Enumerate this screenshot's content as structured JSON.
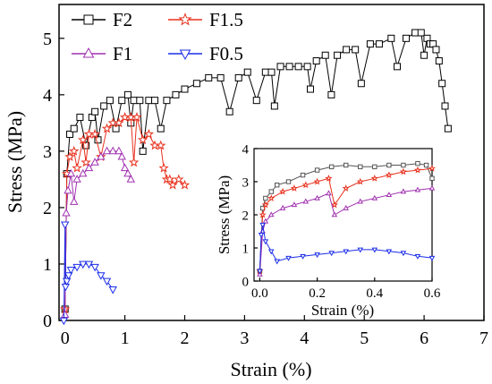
{
  "chart_data": [
    {
      "type": "scatter",
      "xlabel": "Strain (%)",
      "ylabel": "Stress (MPa)",
      "xlim": [
        -0.1,
        7
      ],
      "ylim": [
        0,
        5.6
      ],
      "xticks": [
        "0",
        "1",
        "2",
        "3",
        "4",
        "5",
        "6",
        "7"
      ],
      "yticks": [
        "0",
        "1",
        "2",
        "3",
        "4",
        "5"
      ],
      "grid": false,
      "legend": "top-left, two columns",
      "series": [
        {
          "name": "F2",
          "color": "#000000",
          "marker": "square",
          "x": [
            0.0,
            0.03,
            0.08,
            0.15,
            0.25,
            0.35,
            0.45,
            0.5,
            0.55,
            0.65,
            0.75,
            0.85,
            0.95,
            1.05,
            1.1,
            1.15,
            1.25,
            1.3,
            1.4,
            1.5,
            1.6,
            1.7,
            1.85,
            2.0,
            2.2,
            2.4,
            2.6,
            2.75,
            2.9,
            3.05,
            3.2,
            3.35,
            3.45,
            3.5,
            3.6,
            3.75,
            3.9,
            4.05,
            4.1,
            4.2,
            4.35,
            4.45,
            4.55,
            4.7,
            4.85,
            4.95,
            5.1,
            5.25,
            5.45,
            5.55,
            5.7,
            5.85,
            5.95,
            6.0,
            6.05,
            6.1,
            6.15,
            6.2,
            6.25,
            6.3,
            6.35,
            6.4
          ],
          "y": [
            0.2,
            2.6,
            3.3,
            3.4,
            3.6,
            3.1,
            3.6,
            3.7,
            3.2,
            3.8,
            3.9,
            3.4,
            3.9,
            4.0,
            3.5,
            3.9,
            3.9,
            3.0,
            3.9,
            3.9,
            3.4,
            3.9,
            4.0,
            4.1,
            4.2,
            4.3,
            4.3,
            3.7,
            4.3,
            4.4,
            3.9,
            4.4,
            4.4,
            3.8,
            4.5,
            4.5,
            4.5,
            4.5,
            4.1,
            4.6,
            4.7,
            4.0,
            4.7,
            4.8,
            4.8,
            4.2,
            4.9,
            4.9,
            5.0,
            4.5,
            5.0,
            5.1,
            5.1,
            4.7,
            5.0,
            4.9,
            4.9,
            4.8,
            4.6,
            4.2,
            3.8,
            3.4
          ]
        },
        {
          "name": "F1.5",
          "color": "#e8301c",
          "marker": "star",
          "x": [
            0.0,
            0.03,
            0.08,
            0.15,
            0.2,
            0.3,
            0.35,
            0.4,
            0.5,
            0.6,
            0.7,
            0.8,
            0.9,
            1.0,
            1.1,
            1.15,
            1.2,
            1.3,
            1.4,
            1.5,
            1.6,
            1.65,
            1.7,
            1.75,
            1.8,
            1.9,
            2.0
          ],
          "y": [
            0.2,
            2.6,
            2.9,
            3.0,
            2.7,
            3.2,
            2.8,
            3.3,
            3.3,
            2.9,
            3.4,
            3.5,
            3.5,
            3.6,
            3.6,
            2.8,
            3.6,
            3.2,
            3.3,
            3.1,
            3.1,
            2.7,
            2.5,
            2.5,
            2.4,
            2.5,
            2.4
          ]
        },
        {
          "name": "F1",
          "color": "#a030b0",
          "marker": "triangle-up",
          "x": [
            0.0,
            0.02,
            0.05,
            0.1,
            0.15,
            0.2,
            0.3,
            0.4,
            0.5,
            0.6,
            0.7,
            0.8,
            0.9,
            0.95,
            1.0,
            1.05,
            1.1
          ],
          "y": [
            0.1,
            1.9,
            2.3,
            2.6,
            2.1,
            2.5,
            2.6,
            2.7,
            2.8,
            2.9,
            3.0,
            3.0,
            3.0,
            2.9,
            2.7,
            2.6,
            2.5
          ]
        },
        {
          "name": "F0.5",
          "color": "#1c2ee8",
          "marker": "triangle-down",
          "x": [
            -0.02,
            0.0,
            0.01,
            0.03,
            0.06,
            0.1,
            0.2,
            0.3,
            0.4,
            0.5,
            0.6,
            0.7,
            0.8
          ],
          "y": [
            0.0,
            1.7,
            0.6,
            0.7,
            0.8,
            0.9,
            0.95,
            1.0,
            1.0,
            0.95,
            0.8,
            0.7,
            0.55
          ]
        }
      ]
    },
    {
      "type": "scatter",
      "xlabel": "Strain (%)",
      "ylabel": "Stress (MPa)",
      "xlim": [
        -0.02,
        0.6
      ],
      "ylim": [
        0,
        4
      ],
      "xticks": [
        "0.0",
        "0.2",
        "0.4",
        "0.6"
      ],
      "yticks": [
        "0",
        "1",
        "2",
        "3",
        "4"
      ],
      "grid": false,
      "series": [
        {
          "name": "F2",
          "color": "#555555",
          "marker": "square",
          "x": [
            0.0,
            0.01,
            0.02,
            0.04,
            0.06,
            0.1,
            0.15,
            0.2,
            0.25,
            0.3,
            0.35,
            0.4,
            0.45,
            0.5,
            0.55,
            0.58,
            0.6
          ],
          "y": [
            0.3,
            2.2,
            2.5,
            2.7,
            2.9,
            3.0,
            3.2,
            3.35,
            3.45,
            3.5,
            3.45,
            3.45,
            3.5,
            3.5,
            3.55,
            3.5,
            3.1
          ]
        },
        {
          "name": "F1.5",
          "color": "#e8301c",
          "marker": "star",
          "x": [
            0.0,
            0.01,
            0.02,
            0.04,
            0.08,
            0.12,
            0.16,
            0.2,
            0.24,
            0.26,
            0.3,
            0.35,
            0.4,
            0.45,
            0.5,
            0.55,
            0.6
          ],
          "y": [
            0.3,
            2.0,
            2.3,
            2.5,
            2.7,
            2.8,
            2.9,
            3.0,
            3.1,
            2.3,
            2.8,
            3.0,
            3.1,
            3.2,
            3.3,
            3.35,
            3.4
          ]
        },
        {
          "name": "F1",
          "color": "#a030b0",
          "marker": "triangle-up",
          "x": [
            0.0,
            0.01,
            0.02,
            0.04,
            0.08,
            0.12,
            0.16,
            0.2,
            0.24,
            0.26,
            0.3,
            0.35,
            0.4,
            0.45,
            0.5,
            0.55,
            0.6
          ],
          "y": [
            0.2,
            1.5,
            1.8,
            2.0,
            2.2,
            2.3,
            2.4,
            2.5,
            2.65,
            2.0,
            2.2,
            2.4,
            2.5,
            2.6,
            2.7,
            2.75,
            2.8
          ]
        },
        {
          "name": "F0.5",
          "color": "#1c2ee8",
          "marker": "triangle-down",
          "x": [
            0.0,
            0.005,
            0.01,
            0.02,
            0.04,
            0.06,
            0.1,
            0.15,
            0.2,
            0.25,
            0.3,
            0.35,
            0.4,
            0.45,
            0.5,
            0.55,
            0.6
          ],
          "y": [
            0.3,
            1.4,
            1.7,
            1.2,
            0.9,
            0.6,
            0.7,
            0.75,
            0.8,
            0.85,
            0.9,
            0.95,
            0.95,
            0.9,
            0.85,
            0.75,
            0.7
          ]
        }
      ]
    }
  ]
}
